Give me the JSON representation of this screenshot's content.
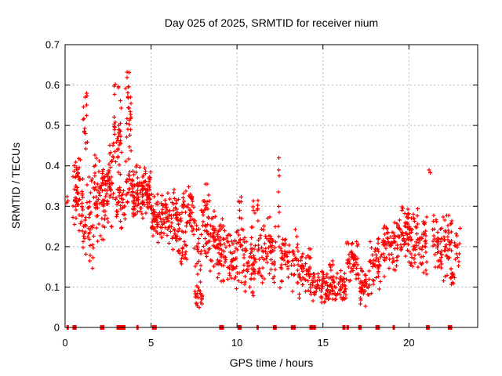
{
  "title": "Day 025 of 2025, SRMTID for receiver nium",
  "colors": {
    "points": "#ff0000",
    "grid": "#b8b8b8",
    "border": "#000000",
    "background": "#ffffff",
    "text": "#000000"
  },
  "chart_data": {
    "type": "scatter",
    "title": "Day 025 of 2025, SRMTID for receiver nium",
    "xlabel": "GPS time / hours",
    "ylabel": "SRMTID / TECUs",
    "xlim": [
      0,
      24
    ],
    "ylim": [
      0,
      0.7
    ],
    "x_ticks": [
      0,
      5,
      10,
      15,
      20
    ],
    "x_tick_labels": [
      "0",
      "5",
      "10",
      "15",
      "20"
    ],
    "y_ticks": [
      0,
      0.1,
      0.2,
      0.3,
      0.4,
      0.5,
      0.6,
      0.7
    ],
    "y_tick_labels": [
      "0",
      "0.1",
      "0.2",
      "0.3",
      "0.4",
      "0.5",
      "0.6",
      "0.7"
    ],
    "grid": true,
    "legend": false,
    "marker": "plus",
    "series_name": "SRMTID",
    "series_color": "#ff0000",
    "clusters_schema": [
      "x_start_hour",
      "x_end_hour",
      "n_points",
      "y_min_tecu",
      "y_max_tecu"
    ],
    "point_clusters": [
      [
        0.02,
        0.18,
        3,
        0.3,
        0.335
      ],
      [
        0.45,
        1.05,
        55,
        0.23,
        0.43
      ],
      [
        0.6,
        0.75,
        6,
        0.36,
        0.42
      ],
      [
        1.02,
        1.3,
        15,
        0.4,
        0.645
      ],
      [
        1.0,
        1.65,
        45,
        0.14,
        0.4
      ],
      [
        1.65,
        2.25,
        60,
        0.2,
        0.45
      ],
      [
        2.25,
        2.8,
        60,
        0.22,
        0.47
      ],
      [
        2.8,
        3.3,
        42,
        0.34,
        0.625
      ],
      [
        2.9,
        3.5,
        35,
        0.24,
        0.36
      ],
      [
        3.5,
        3.85,
        30,
        0.38,
        0.695
      ],
      [
        3.55,
        3.95,
        20,
        0.3,
        0.4
      ],
      [
        3.9,
        4.45,
        55,
        0.25,
        0.42
      ],
      [
        4.45,
        5.0,
        65,
        0.25,
        0.405
      ],
      [
        5.0,
        5.45,
        40,
        0.19,
        0.35
      ],
      [
        5.45,
        5.95,
        40,
        0.2,
        0.34
      ],
      [
        5.95,
        6.55,
        50,
        0.18,
        0.37
      ],
      [
        6.55,
        7.1,
        50,
        0.12,
        0.35
      ],
      [
        7.1,
        7.5,
        30,
        0.2,
        0.36
      ],
      [
        7.45,
        7.95,
        25,
        0.1,
        0.3
      ],
      [
        7.55,
        8.0,
        25,
        0.045,
        0.11
      ],
      [
        8.0,
        8.4,
        40,
        0.15,
        0.37
      ],
      [
        8.4,
        8.9,
        40,
        0.13,
        0.3
      ],
      [
        8.85,
        9.45,
        50,
        0.1,
        0.28
      ],
      [
        9.45,
        10.0,
        40,
        0.08,
        0.25
      ],
      [
        10.0,
        10.35,
        25,
        0.1,
        0.33
      ],
      [
        10.35,
        11.1,
        60,
        0.07,
        0.26
      ],
      [
        10.9,
        11.25,
        8,
        0.27,
        0.33
      ],
      [
        11.2,
        12.3,
        70,
        0.09,
        0.29
      ],
      [
        12.5,
        13.6,
        65,
        0.08,
        0.25
      ],
      [
        13.6,
        14.3,
        50,
        0.07,
        0.21
      ],
      [
        14.3,
        15.2,
        55,
        0.055,
        0.15
      ],
      [
        15.2,
        16.35,
        75,
        0.05,
        0.145
      ],
      [
        15.35,
        15.6,
        6,
        0.14,
        0.17
      ],
      [
        16.35,
        17.05,
        50,
        0.1,
        0.22
      ],
      [
        17.05,
        17.7,
        45,
        0.05,
        0.15
      ],
      [
        17.7,
        18.4,
        45,
        0.08,
        0.23
      ],
      [
        18.4,
        19.35,
        60,
        0.12,
        0.28
      ],
      [
        19.35,
        20.0,
        55,
        0.15,
        0.32
      ],
      [
        20.0,
        21.05,
        75,
        0.12,
        0.3
      ],
      [
        21.35,
        22.5,
        80,
        0.11,
        0.3
      ],
      [
        22.4,
        22.65,
        18,
        0.095,
        0.16
      ],
      [
        22.65,
        23.0,
        15,
        0.12,
        0.27
      ]
    ],
    "outlier_points": [
      [
        21.18,
        0.39
      ],
      [
        21.24,
        0.383
      ],
      [
        12.43,
        0.42
      ],
      [
        12.43,
        0.39
      ],
      [
        12.45,
        0.375
      ],
      [
        12.41,
        0.335
      ],
      [
        12.43,
        0.3
      ],
      [
        12.45,
        0.285
      ],
      [
        12.41,
        0.25
      ],
      [
        12.43,
        0.225
      ],
      [
        12.45,
        0.2
      ]
    ],
    "zero_marks_schema": [
      "x_center_hour",
      "half_width_hour"
    ],
    "zero_marks": [
      [
        0.15,
        0.03
      ],
      [
        0.55,
        0.12
      ],
      [
        2.1,
        0.04
      ],
      [
        2.22,
        0.04
      ],
      [
        3.25,
        0.26
      ],
      [
        4.21,
        0.05
      ],
      [
        5.12,
        0.04
      ],
      [
        5.26,
        0.04
      ],
      [
        9.1,
        0.14
      ],
      [
        10.15,
        0.12
      ],
      [
        11.2,
        0.05
      ],
      [
        12.2,
        0.11
      ],
      [
        13.2,
        0.05
      ],
      [
        13.34,
        0.04
      ],
      [
        14.33,
        0.12
      ],
      [
        14.52,
        0.05
      ],
      [
        16.22,
        0.09
      ],
      [
        16.44,
        0.07
      ],
      [
        17.15,
        0.1
      ],
      [
        18.12,
        0.04
      ],
      [
        18.24,
        0.04
      ],
      [
        19.12,
        0.04
      ],
      [
        21.1,
        0.11
      ],
      [
        22.33,
        0.04
      ],
      [
        22.45,
        0.04
      ]
    ]
  }
}
